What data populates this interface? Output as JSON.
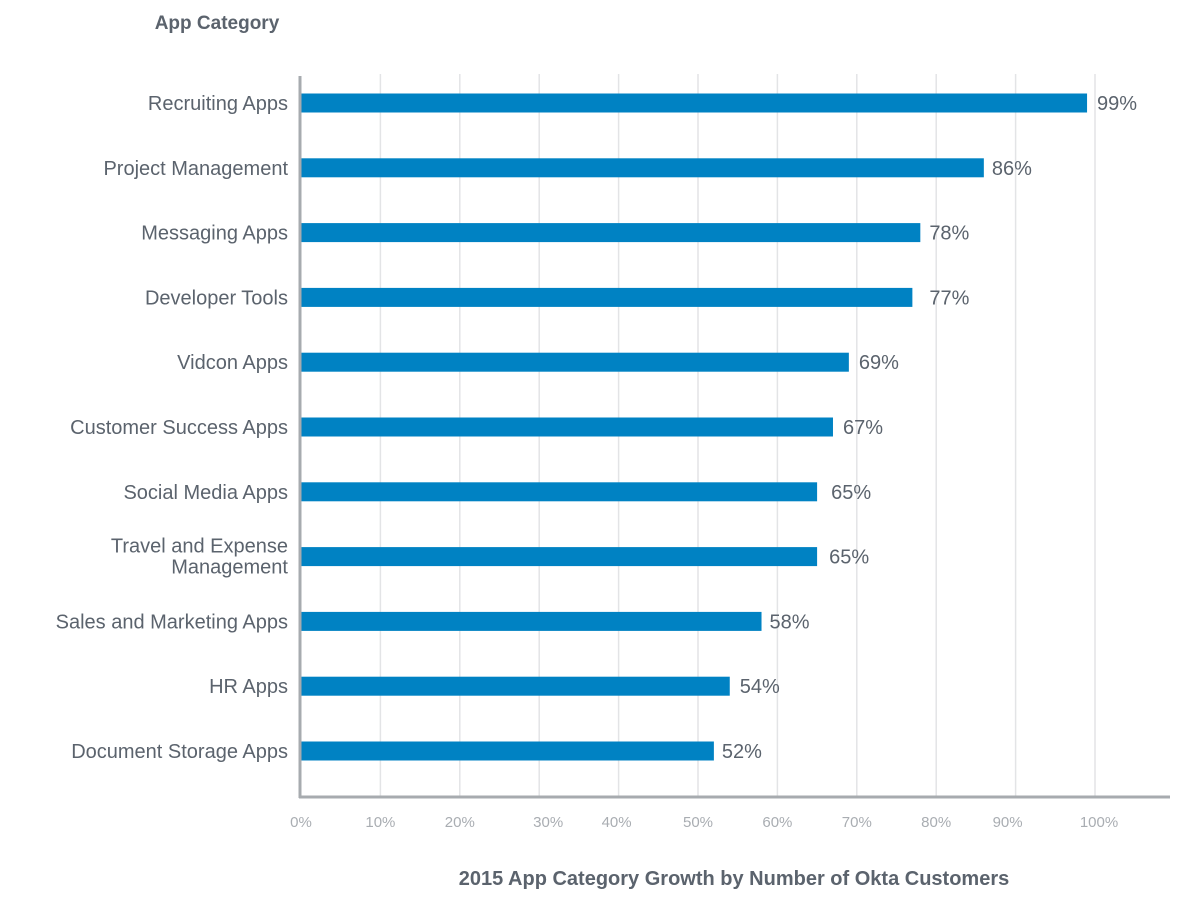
{
  "chart_data": {
    "type": "bar",
    "orientation": "horizontal",
    "title": "",
    "ylabel": "App Category",
    "xlabel": "2015 App Category Growth by Number of Okta Customers",
    "xlim": [
      0,
      110
    ],
    "grid": true,
    "x_ticks": [
      "0%",
      "10%",
      "20%",
      "30%",
      "40%",
      "50%",
      "60%",
      "70%",
      "80%",
      "90%",
      "100%"
    ],
    "categories": [
      "Recruiting Apps",
      "Project Management",
      "Messaging Apps",
      "Developer Tools",
      "Vidcon Apps",
      "Customer Success Apps",
      "Social Media Apps",
      "Travel and Expense Management",
      "Sales and Marketing Apps",
      "HR Apps",
      "Document Storage Apps"
    ],
    "category_lines": [
      [
        "Recruiting Apps"
      ],
      [
        "Project Management"
      ],
      [
        "Messaging Apps"
      ],
      [
        "Developer Tools"
      ],
      [
        "Vidcon Apps"
      ],
      [
        "Customer Success Apps"
      ],
      [
        "Social Media Apps"
      ],
      [
        "Travel and Expense",
        "Management"
      ],
      [
        "Sales and Marketing Apps"
      ],
      [
        "HR Apps"
      ],
      [
        "Document Storage Apps"
      ]
    ],
    "values": [
      99,
      86,
      78,
      77,
      69,
      67,
      65,
      65,
      58,
      54,
      52
    ],
    "value_labels": [
      "99%",
      "86%",
      "78%",
      "77%",
      "69%",
      "67%",
      "65%",
      "65%",
      "58%",
      "54%",
      "52%"
    ],
    "colors": {
      "bar": "#0082c3",
      "text": "#5b636d",
      "tick": "#a9adb2",
      "grid": "#e3e4e6",
      "axis": "#a7abaf"
    }
  }
}
